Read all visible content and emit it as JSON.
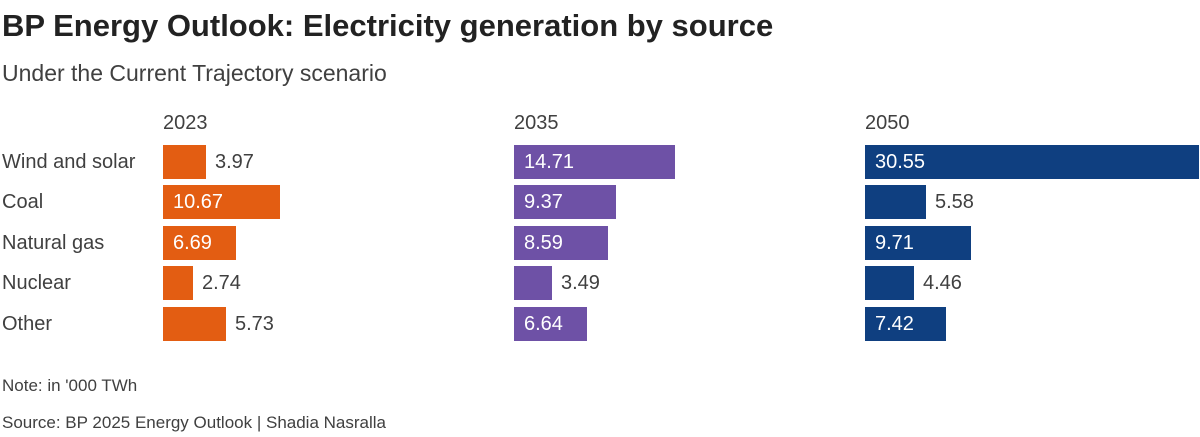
{
  "title": "BP Energy Outlook: Electricity generation by source",
  "subtitle": "Under the Current Trajectory scenario",
  "note": "Note: in '000 TWh",
  "source": "Source: BP 2025 Energy Outlook | Shadia Nasralla",
  "chart_data": {
    "type": "bar",
    "orientation": "horizontal",
    "layout": "small-multiples",
    "categories": [
      "Wind and solar",
      "Coal",
      "Natural gas",
      "Nuclear",
      "Other"
    ],
    "xlim": [
      0,
      30.55
    ],
    "series": [
      {
        "name": "2023",
        "color": "#e35d12",
        "values": [
          3.97,
          10.67,
          6.69,
          2.74,
          5.73
        ]
      },
      {
        "name": "2035",
        "color": "#6e51a6",
        "values": [
          14.71,
          9.37,
          8.59,
          3.49,
          6.64
        ]
      },
      {
        "name": "2050",
        "color": "#0f3f80",
        "values": [
          30.55,
          5.58,
          9.71,
          4.46,
          7.42
        ]
      }
    ],
    "units": "'000 TWh"
  }
}
